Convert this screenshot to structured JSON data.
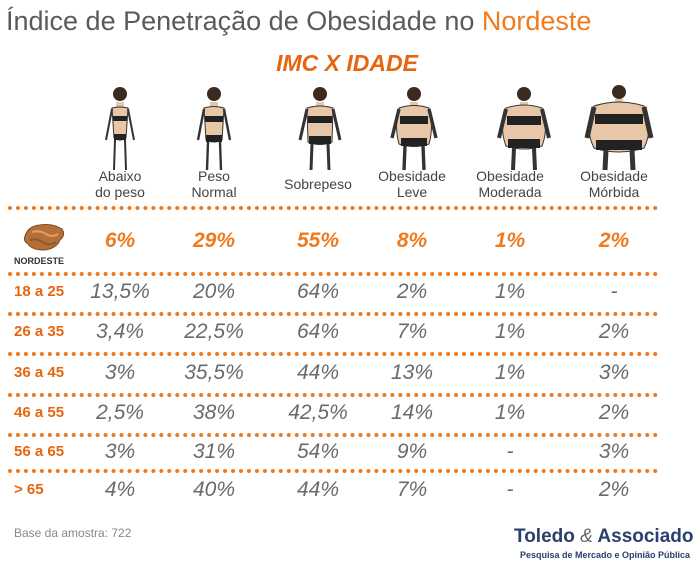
{
  "title_main": "Índice de Penetração de Obesidade no ",
  "title_accent": "Nordeste",
  "subtitle": "IMC X IDADE",
  "region_label": "NORDESTE",
  "base_text": "Base da amostra: 722",
  "brand_name_a": "Toledo ",
  "brand_amp": "&",
  "brand_name_b": " Associados",
  "brand_sub": "Pesquisa de Mercado e Opinião Pública",
  "chart_data": {
    "type": "table",
    "title": "Índice de Penetração de Obesidade no Nordeste",
    "subtitle": "IMC X IDADE",
    "columns": [
      {
        "l1": "Abaixo",
        "l2": "do peso"
      },
      {
        "l1": "Peso",
        "l2": "Normal"
      },
      {
        "l1": "",
        "l2": "Sobrepeso"
      },
      {
        "l1": "Obesidade",
        "l2": "Leve"
      },
      {
        "l1": "Obesidade",
        "l2": "Moderada"
      },
      {
        "l1": "Obesidade",
        "l2": "Mórbida"
      }
    ],
    "rows": [
      {
        "label": "NORDESTE",
        "values": [
          "6%",
          "29%",
          "55%",
          "8%",
          "1%",
          "2%"
        ]
      },
      {
        "label": "18 a 25",
        "values": [
          "13,5%",
          "20%",
          "64%",
          "2%",
          "1%",
          "-"
        ]
      },
      {
        "label": "26 a 35",
        "values": [
          "3,4%",
          "22,5%",
          "64%",
          "7%",
          "1%",
          "2%"
        ]
      },
      {
        "label": "36 a 45",
        "values": [
          "3%",
          "35,5%",
          "44%",
          "13%",
          "1%",
          "3%"
        ]
      },
      {
        "label": "46 a 55",
        "values": [
          "2,5%",
          "38%",
          "42,5%",
          "14%",
          "1%",
          "2%"
        ]
      },
      {
        "label": "56 a 65",
        "values": [
          "3%",
          "31%",
          "54%",
          "9%",
          "-",
          "3%"
        ]
      },
      {
        "label": "> 65",
        "values": [
          "4%",
          "40%",
          "44%",
          "7%",
          "-",
          "2%"
        ]
      }
    ]
  },
  "colors": {
    "accent": "#f07a1e",
    "text": "#6a6a6a",
    "brand": "#2a3f6b"
  }
}
